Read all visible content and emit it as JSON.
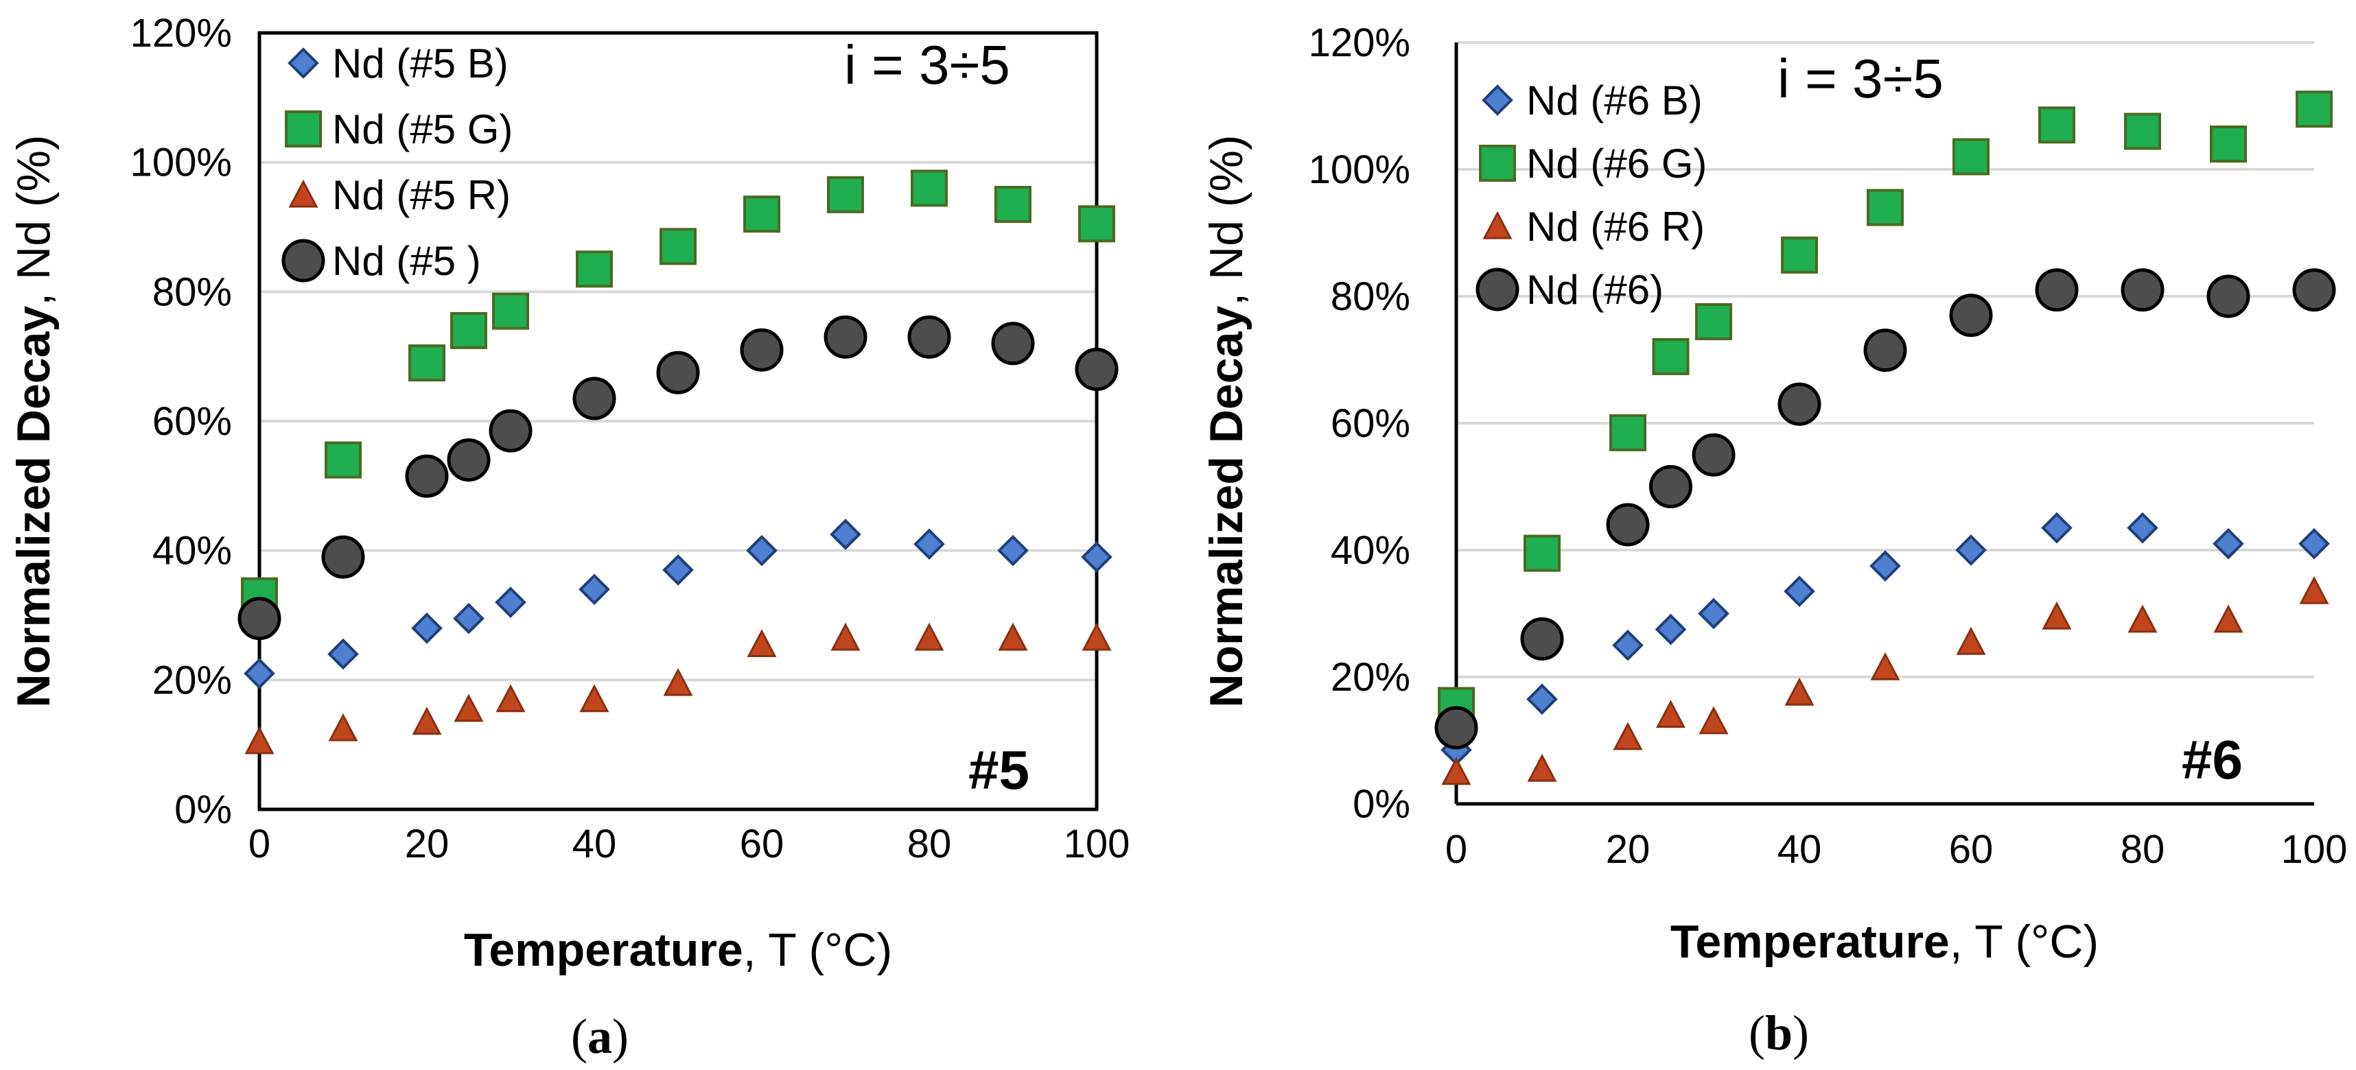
{
  "chart_data": [
    {
      "type": "scatter",
      "panel_label": "#5",
      "annotation": "i = 3÷5",
      "caption": "a",
      "xlabel_bold": "Temperature",
      "xlabel_rest": ", T (°C)",
      "ylabel_bold": "Normalized Decay",
      "ylabel_rest": ", Nd (%)",
      "xlim": [
        0,
        100
      ],
      "ylim": [
        0,
        120
      ],
      "x_ticks": [
        0,
        20,
        40,
        60,
        80,
        100
      ],
      "y_ticks": [
        "0%",
        "20%",
        "40%",
        "60%",
        "80%",
        "100%",
        "120%"
      ],
      "legend_position": "top-left",
      "x": [
        0,
        10,
        20,
        25,
        30,
        40,
        50,
        60,
        70,
        80,
        90,
        100
      ],
      "series": [
        {
          "name": "Nd (#5 B)",
          "marker": "diamond",
          "values": [
            21,
            24,
            28,
            29.5,
            32,
            34,
            37,
            40,
            42.5,
            41,
            40,
            39
          ]
        },
        {
          "name": "Nd (#5 G)",
          "marker": "square",
          "values": [
            33,
            54,
            69,
            74,
            77,
            83.5,
            87,
            92,
            95,
            96,
            93.5,
            90.5
          ]
        },
        {
          "name": "Nd (#5 R)",
          "marker": "triangle",
          "values": [
            10.5,
            12.5,
            13.5,
            15.5,
            17,
            17,
            19.5,
            25.5,
            26.5,
            26.5,
            26.5,
            26.5
          ]
        },
        {
          "name": "Nd (#5 )",
          "marker": "circle",
          "values": [
            29.5,
            39,
            51.5,
            54,
            58.5,
            63.5,
            67.5,
            71,
            73,
            73,
            72,
            68
          ]
        }
      ]
    },
    {
      "type": "scatter",
      "panel_label": "#6",
      "annotation": "i = 3÷5",
      "caption": "b",
      "xlabel_bold": "Temperature",
      "xlabel_rest": ", T (°C)",
      "ylabel_bold": "Normalized Decay",
      "ylabel_rest": ", Nd (%)",
      "xlim": [
        0,
        100
      ],
      "ylim": [
        0,
        120
      ],
      "x_ticks": [
        0,
        20,
        40,
        60,
        80,
        100
      ],
      "y_ticks": [
        "0%",
        "20%",
        "40%",
        "60%",
        "80%",
        "100%",
        "120%"
      ],
      "legend_position": "top-left",
      "x": [
        0,
        10,
        20,
        25,
        30,
        40,
        50,
        60,
        70,
        80,
        90,
        100
      ],
      "series": [
        {
          "name": "Nd (#6 B)",
          "marker": "diamond",
          "values": [
            8.5,
            16.5,
            25,
            27.5,
            30,
            33.5,
            37.5,
            40,
            43.5,
            43.5,
            41,
            41
          ]
        },
        {
          "name": "Nd (#6 G)",
          "marker": "square",
          "values": [
            15.5,
            39.5,
            58.5,
            70.5,
            76,
            86.5,
            94,
            102,
            107,
            106,
            104,
            109.5
          ]
        },
        {
          "name": "Nd (#6 R)",
          "marker": "triangle",
          "values": [
            5,
            5.5,
            10.5,
            14,
            13,
            17.5,
            21.5,
            25.5,
            29.5,
            29,
            29,
            33.5
          ]
        },
        {
          "name": "Nd (#6)",
          "marker": "circle",
          "values": [
            12,
            26,
            44,
            50,
            55,
            63,
            71.5,
            77,
            81,
            81,
            80,
            81
          ]
        }
      ]
    }
  ]
}
